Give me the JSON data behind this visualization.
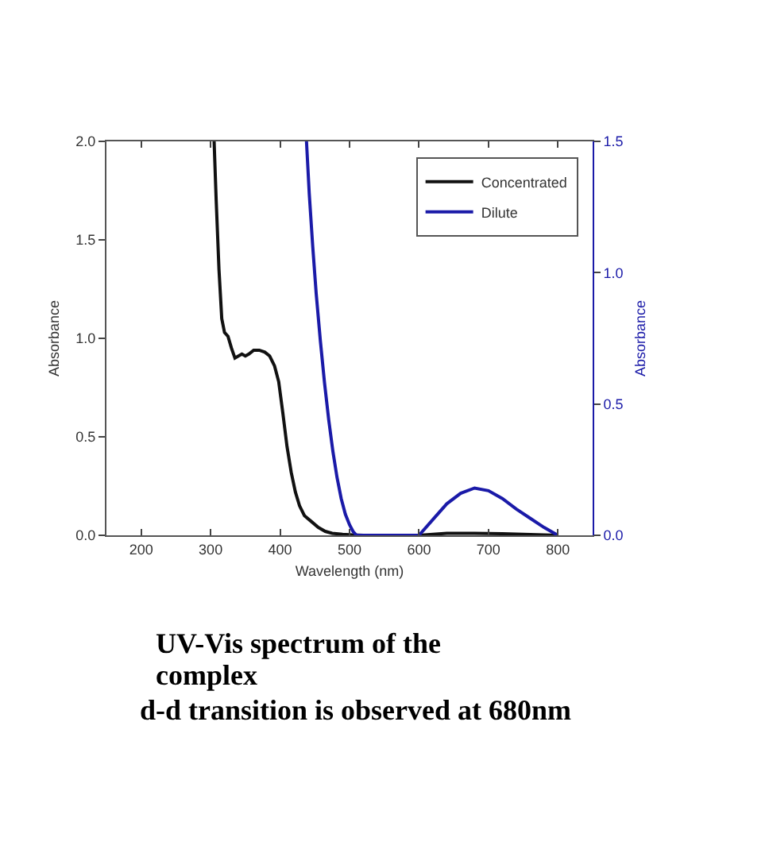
{
  "chart_data": {
    "type": "line",
    "xlabel": "Wavelength (nm)",
    "ylabel": "Absorbance",
    "y2label": "Absorbance",
    "annotations": [
      "UV-Vis spectrum of the complex",
      "d-d transition is observed at 680nm"
    ],
    "xlim": [
      150,
      850
    ],
    "xticks": [
      200,
      300,
      400,
      500,
      600,
      700,
      800
    ],
    "ylim": [
      0,
      2
    ],
    "yticks": [
      {
        "value": 0,
        "label": "0.0"
      },
      {
        "value": 0.5,
        "label": "0.5"
      },
      {
        "value": 1,
        "label": "1.0"
      },
      {
        "value": 1.5,
        "label": "1.5"
      },
      {
        "value": 2,
        "label": "2.0"
      }
    ],
    "y2lim": [
      0,
      1.5
    ],
    "y2ticks": [
      {
        "value": 0,
        "label": "0.0"
      },
      {
        "value": 0.5,
        "label": "0.5"
      },
      {
        "value": 1,
        "label": "1.0"
      },
      {
        "value": 1.5,
        "label": "1.5"
      }
    ],
    "legend": "top right",
    "grid": false,
    "line_style": "solid",
    "marker": "none",
    "series": [
      {
        "name": "Concentrated",
        "color": "#111111",
        "x": [
          305,
          308,
          312,
          316,
          320,
          325,
          330,
          335,
          340,
          345,
          350,
          355,
          362,
          370,
          378,
          385,
          392,
          398,
          404,
          410,
          416,
          422,
          428,
          435,
          445,
          455,
          465,
          475,
          490,
          505,
          520,
          560,
          600,
          640,
          680,
          720,
          760,
          800
        ],
        "values": [
          2.0,
          1.7,
          1.35,
          1.1,
          1.03,
          1.01,
          0.95,
          0.9,
          0.91,
          0.92,
          0.91,
          0.92,
          0.94,
          0.94,
          0.93,
          0.91,
          0.86,
          0.78,
          0.62,
          0.45,
          0.32,
          0.22,
          0.15,
          0.1,
          0.07,
          0.04,
          0.02,
          0.01,
          0.005,
          0.002,
          0,
          0,
          0,
          0.01,
          0.01,
          0.008,
          0.004,
          0
        ]
      },
      {
        "name": "Dilute",
        "color": "#1a1aa8",
        "axis": "y2",
        "x": [
          438,
          442,
          447,
          452,
          458,
          464,
          470,
          476,
          482,
          488,
          494,
          500,
          505,
          510,
          560,
          600,
          620,
          640,
          660,
          680,
          700,
          720,
          740,
          760,
          780,
          800
        ],
        "values": [
          1.5,
          1.3,
          1.1,
          0.92,
          0.74,
          0.58,
          0.44,
          0.32,
          0.22,
          0.14,
          0.08,
          0.04,
          0.015,
          0,
          0,
          0,
          0.06,
          0.12,
          0.16,
          0.18,
          0.17,
          0.14,
          0.1,
          0.065,
          0.03,
          0
        ]
      }
    ]
  }
}
